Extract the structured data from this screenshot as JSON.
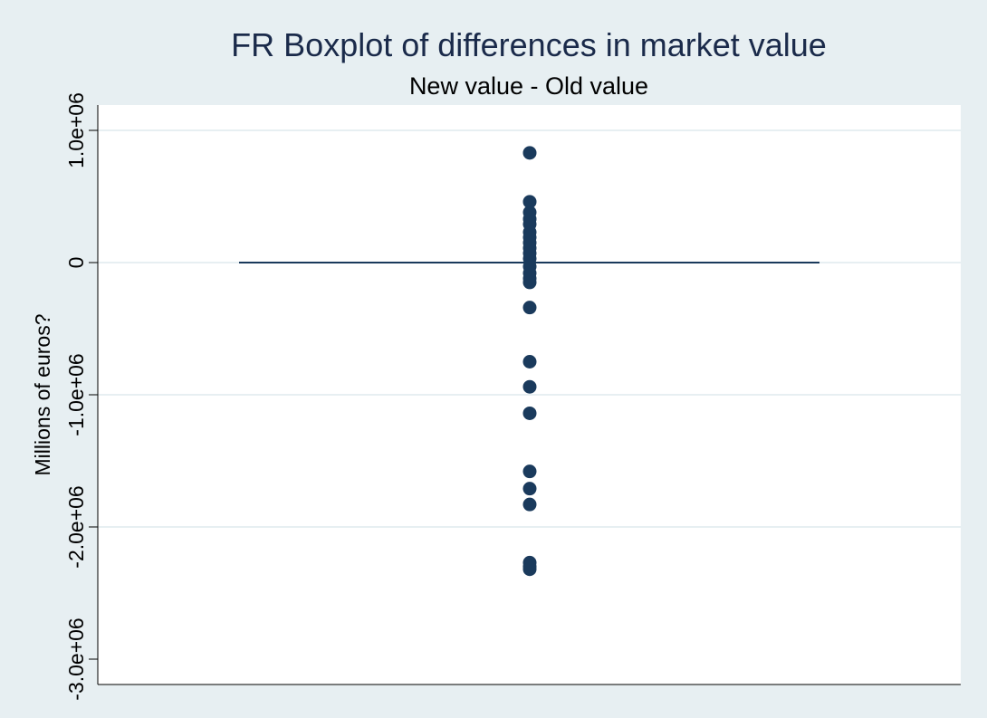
{
  "chart_data": {
    "type": "box",
    "title": "FR Boxplot of differences in market value",
    "subtitle": "New value - Old value",
    "ylabel": "Millions of euros?",
    "xlabel": "",
    "ylim": [
      -3000000,
      1200000
    ],
    "yticks": [
      {
        "value": 1000000,
        "label": "1.0e+06"
      },
      {
        "value": 0,
        "label": "0"
      },
      {
        "value": -1000000,
        "label": "-1.0e+06"
      },
      {
        "value": -2000000,
        "label": "-2.0e+06"
      },
      {
        "value": -3000000,
        "label": "-3.0e+06"
      }
    ],
    "grid": true,
    "box": {
      "q1": 0,
      "median": 0,
      "q3": 0
    },
    "outliers": [
      830000,
      460000,
      380000,
      330000,
      290000,
      230000,
      190000,
      150000,
      110000,
      70000,
      30000,
      -30000,
      -80000,
      -120000,
      -150000,
      -340000,
      -750000,
      -940000,
      -1140000,
      -1580000,
      -1710000,
      -1830000,
      -2270000,
      -2300000,
      -2320000
    ],
    "colors": {
      "background": "#e7eff2",
      "plot_area": "#ffffff",
      "gridline": "#e7eff2",
      "marker": "#1a3a5c",
      "title": "#1a2a4a",
      "text": "#000000"
    }
  }
}
